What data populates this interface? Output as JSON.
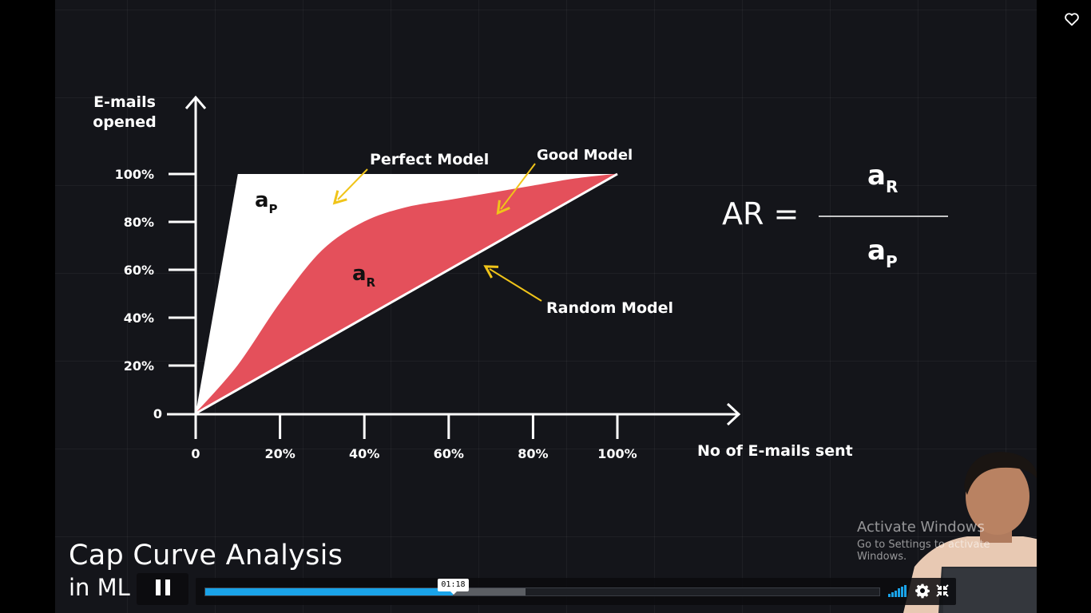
{
  "slide": {
    "y_axis_title_line1": "E-mails",
    "y_axis_title_line2": "opened",
    "x_axis_title": "No of E-mails sent",
    "y_ticks": [
      "100%",
      "80%",
      "60%",
      "40%",
      "20%",
      "0"
    ],
    "x_ticks": [
      "0",
      "20%",
      "40%",
      "60%",
      "80%",
      "100%"
    ],
    "perfect_model_label": "Perfect Model",
    "good_model_label": "Good Model",
    "random_model_label": "Random Model",
    "ap_main": "a",
    "ap_sub": "P",
    "ar_main": "a",
    "ar_sub": "R",
    "formula_lhs": "AR =",
    "formula_num_main": "a",
    "formula_num_sub": "R",
    "formula_den_main": "a",
    "formula_den_sub": "P",
    "colors": {
      "background": "#14151a",
      "perfect_area": "#ffffff",
      "good_area": "#e4505b",
      "arrows": "#f0c419",
      "axes": "#ffffff"
    }
  },
  "chart_data": {
    "type": "area",
    "xlabel": "No of E-mails sent",
    "ylabel": "E-mails opened",
    "xlim": [
      0,
      100
    ],
    "ylim": [
      0,
      100
    ],
    "series": [
      {
        "name": "Perfect Model",
        "x": [
          0,
          10,
          100
        ],
        "y": [
          0,
          100,
          100
        ]
      },
      {
        "name": "Good Model",
        "x": [
          0,
          10,
          20,
          30,
          40,
          50,
          60,
          70,
          80,
          90,
          100
        ],
        "y": [
          0,
          20,
          46,
          68,
          80,
          86,
          89,
          92,
          95,
          98,
          100
        ]
      },
      {
        "name": "Random Model",
        "x": [
          0,
          100
        ],
        "y": [
          0,
          100
        ]
      }
    ]
  },
  "video": {
    "title_line1": "Cap Curve Analysis",
    "title_line2": "in ML",
    "current_time": "01:18",
    "played_fraction": 0.367,
    "buffered_fraction": 0.475,
    "volume_fraction": 1.0,
    "watermark_line1": "Activate Windows",
    "watermark_line2": "Go to Settings to activate Windows.",
    "accent_color": "#1aa3e8"
  }
}
